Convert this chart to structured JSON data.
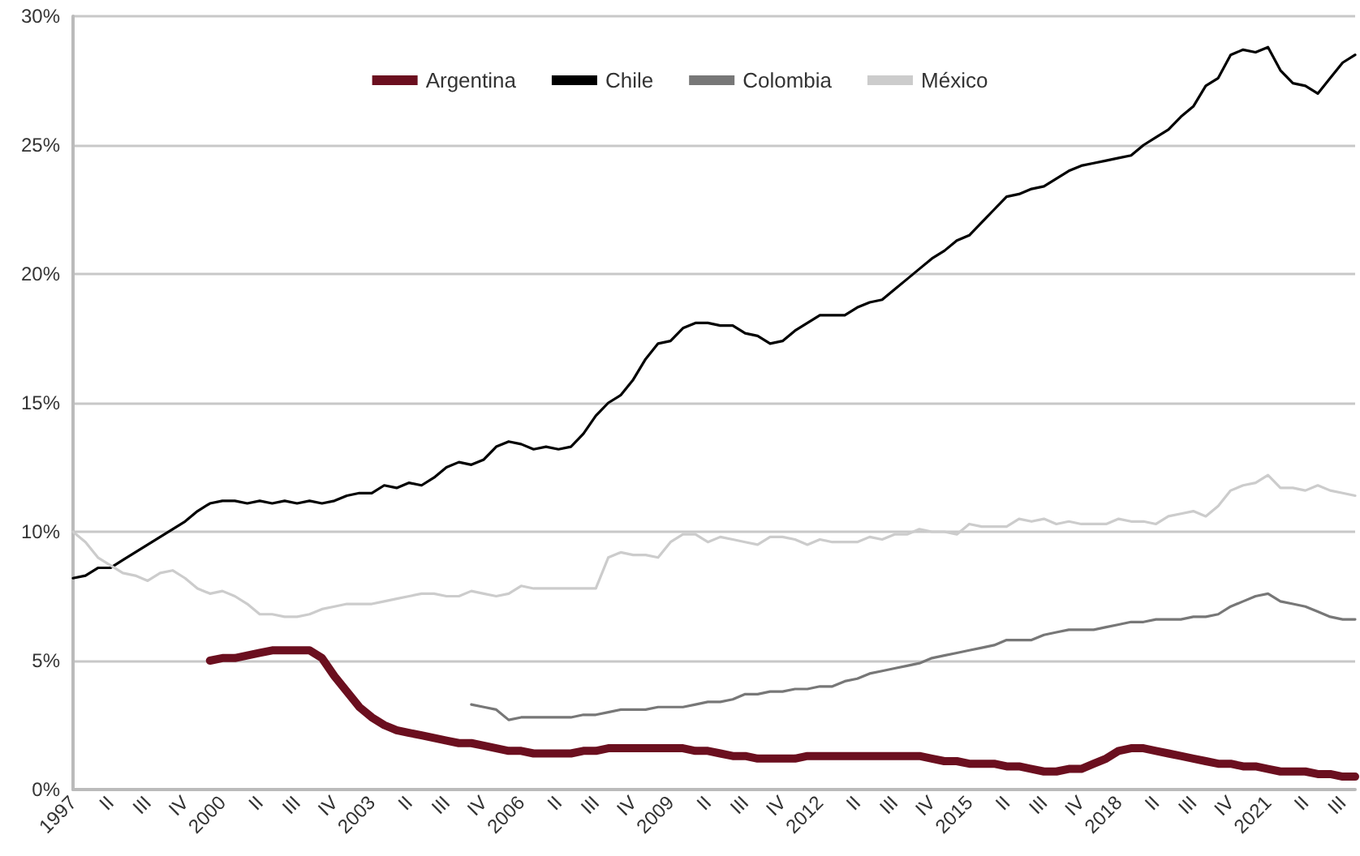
{
  "chart_data": {
    "type": "line",
    "categories": [
      "1997",
      null,
      null,
      "II",
      null,
      null,
      "III",
      null,
      null,
      "IV",
      null,
      null,
      "2000",
      null,
      null,
      "II",
      null,
      null,
      "III",
      null,
      null,
      "IV",
      null,
      null,
      "2003",
      null,
      null,
      "II",
      null,
      null,
      "III",
      null,
      null,
      "IV",
      null,
      null,
      "2006",
      null,
      null,
      "II",
      null,
      null,
      "III",
      null,
      null,
      "IV",
      null,
      null,
      "2009",
      null,
      null,
      "II",
      null,
      null,
      "III",
      null,
      null,
      "IV",
      null,
      null,
      "2012",
      null,
      null,
      "II",
      null,
      null,
      "III",
      null,
      null,
      "IV",
      null,
      null,
      "2015",
      null,
      null,
      "II",
      null,
      null,
      "III",
      null,
      null,
      "IV",
      null,
      null,
      "2018",
      null,
      null,
      "II",
      null,
      null,
      "III",
      null,
      null,
      "IV",
      null,
      null,
      "2021",
      null,
      null,
      "II",
      null,
      null,
      "III",
      null
    ],
    "series": [
      {
        "name": "Argentina",
        "color": "#6b0f1f",
        "values": [
          null,
          null,
          null,
          null,
          null,
          null,
          null,
          null,
          null,
          null,
          null,
          5.0,
          5.1,
          5.1,
          5.2,
          5.3,
          5.4,
          5.4,
          5.4,
          5.4,
          5.1,
          4.4,
          3.8,
          3.2,
          2.8,
          2.5,
          2.3,
          2.2,
          2.1,
          2.0,
          1.9,
          1.8,
          1.8,
          1.7,
          1.6,
          1.5,
          1.5,
          1.4,
          1.4,
          1.4,
          1.4,
          1.5,
          1.5,
          1.6,
          1.6,
          1.6,
          1.6,
          1.6,
          1.6,
          1.6,
          1.5,
          1.5,
          1.4,
          1.3,
          1.3,
          1.2,
          1.2,
          1.2,
          1.2,
          1.3,
          1.3,
          1.3,
          1.3,
          1.3,
          1.3,
          1.3,
          1.3,
          1.3,
          1.3,
          1.2,
          1.1,
          1.1,
          1.0,
          1.0,
          1.0,
          0.9,
          0.9,
          0.8,
          0.7,
          0.7,
          0.8,
          0.8,
          1.0,
          1.2,
          1.5,
          1.6,
          1.6,
          1.5,
          1.4,
          1.3,
          1.2,
          1.1,
          1.0,
          1.0,
          0.9,
          0.9,
          0.8,
          0.7,
          0.7,
          0.7,
          0.6,
          0.6,
          0.5,
          0.5
        ]
      },
      {
        "name": "Chile",
        "color": "#000000",
        "values": [
          8.2,
          8.3,
          8.6,
          8.6,
          8.9,
          9.2,
          9.5,
          9.8,
          10.1,
          10.4,
          10.8,
          11.1,
          11.2,
          11.2,
          11.1,
          11.2,
          11.1,
          11.2,
          11.1,
          11.2,
          11.1,
          11.2,
          11.4,
          11.5,
          11.5,
          11.8,
          11.7,
          11.9,
          11.8,
          12.1,
          12.5,
          12.7,
          12.6,
          12.8,
          13.3,
          13.5,
          13.4,
          13.2,
          13.3,
          13.2,
          13.3,
          13.8,
          14.5,
          15.0,
          15.3,
          15.9,
          16.7,
          17.3,
          17.4,
          17.9,
          18.1,
          18.1,
          18.0,
          18.0,
          17.7,
          17.6,
          17.3,
          17.4,
          17.8,
          18.1,
          18.4,
          18.4,
          18.4,
          18.7,
          18.9,
          19.0,
          19.4,
          19.8,
          20.2,
          20.6,
          20.9,
          21.3,
          21.5,
          22.0,
          22.5,
          23.0,
          23.1,
          23.3,
          23.4,
          23.7,
          24.0,
          24.2,
          24.3,
          24.4,
          24.5,
          24.6,
          25.0,
          25.3,
          25.6,
          26.1,
          26.5,
          27.3,
          27.6,
          28.5,
          28.7,
          28.6,
          28.8,
          27.9,
          27.4,
          27.3,
          27.0,
          27.6,
          28.2,
          28.5
        ]
      },
      {
        "name": "Colombia",
        "color": "#777777",
        "values": [
          null,
          null,
          null,
          null,
          null,
          null,
          null,
          null,
          null,
          null,
          null,
          null,
          null,
          null,
          null,
          null,
          null,
          null,
          null,
          null,
          null,
          null,
          null,
          null,
          null,
          null,
          null,
          null,
          null,
          null,
          null,
          null,
          3.3,
          3.2,
          3.1,
          2.7,
          2.8,
          2.8,
          2.8,
          2.8,
          2.8,
          2.9,
          2.9,
          3.0,
          3.1,
          3.1,
          3.1,
          3.2,
          3.2,
          3.2,
          3.3,
          3.4,
          3.4,
          3.5,
          3.7,
          3.7,
          3.8,
          3.8,
          3.9,
          3.9,
          4.0,
          4.0,
          4.2,
          4.3,
          4.5,
          4.6,
          4.7,
          4.8,
          4.9,
          5.1,
          5.2,
          5.3,
          5.4,
          5.5,
          5.6,
          5.8,
          5.8,
          5.8,
          6.0,
          6.1,
          6.2,
          6.2,
          6.2,
          6.3,
          6.4,
          6.5,
          6.5,
          6.6,
          6.6,
          6.6,
          6.7,
          6.7,
          6.8,
          7.1,
          7.3,
          7.5,
          7.6,
          7.3,
          7.2,
          7.1,
          6.9,
          6.7,
          6.6,
          6.6
        ]
      },
      {
        "name": "México",
        "color": "#cccccc",
        "values": [
          10.0,
          9.6,
          9.0,
          8.7,
          8.4,
          8.3,
          8.1,
          8.4,
          8.5,
          8.2,
          7.8,
          7.6,
          7.7,
          7.5,
          7.2,
          6.8,
          6.8,
          6.7,
          6.7,
          6.8,
          7.0,
          7.1,
          7.2,
          7.2,
          7.2,
          7.3,
          7.4,
          7.5,
          7.6,
          7.6,
          7.5,
          7.5,
          7.7,
          7.6,
          7.5,
          7.6,
          7.9,
          7.8,
          7.8,
          7.8,
          7.8,
          7.8,
          7.8,
          9.0,
          9.2,
          9.1,
          9.1,
          9.0,
          9.6,
          9.9,
          9.9,
          9.6,
          9.8,
          9.7,
          9.6,
          9.5,
          9.8,
          9.8,
          9.7,
          9.5,
          9.7,
          9.6,
          9.6,
          9.6,
          9.8,
          9.7,
          9.9,
          9.9,
          10.1,
          10.0,
          10.0,
          9.9,
          10.3,
          10.2,
          10.2,
          10.2,
          10.5,
          10.4,
          10.5,
          10.3,
          10.4,
          10.3,
          10.3,
          10.3,
          10.5,
          10.4,
          10.4,
          10.3,
          10.6,
          10.7,
          10.8,
          10.6,
          11.0,
          11.6,
          11.8,
          11.9,
          12.2,
          11.7,
          11.7,
          11.6,
          11.8,
          11.6,
          11.5,
          11.4
        ]
      }
    ],
    "ylim": [
      0,
      30
    ],
    "yticks": [
      {
        "value": 0,
        "label": "0%"
      },
      {
        "value": 5,
        "label": "5%"
      },
      {
        "value": 10,
        "label": "10%"
      },
      {
        "value": 15,
        "label": "15%"
      },
      {
        "value": 20,
        "label": "20%"
      },
      {
        "value": 25,
        "label": "25%"
      },
      {
        "value": 30,
        "label": "30%"
      }
    ],
    "grid": "y",
    "legend": "top"
  }
}
